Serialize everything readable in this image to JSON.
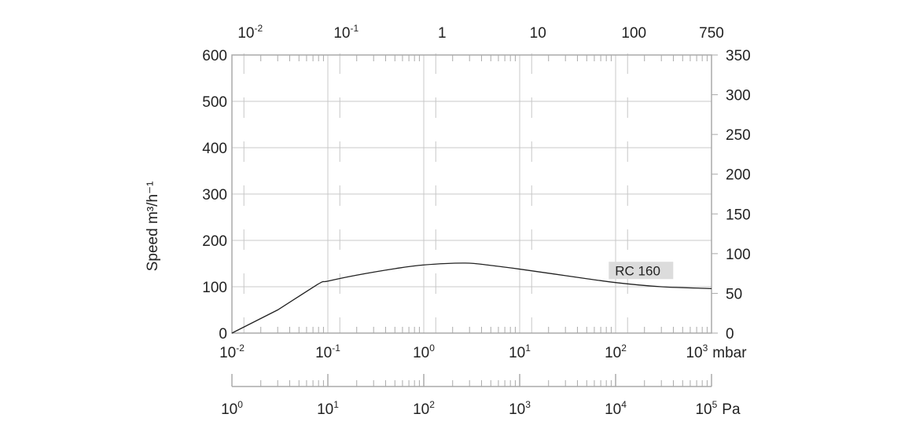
{
  "chart_data": {
    "type": "line",
    "xscale": "log",
    "ylabel": "Speed m³/h⁻¹",
    "x_bottom": {
      "unit": "mbar",
      "xlim": [
        0.01,
        1000
      ],
      "ticks": [
        {
          "b": "10",
          "e": "-2"
        },
        {
          "b": "10",
          "e": "-1"
        },
        {
          "b": "10",
          "e": "0"
        },
        {
          "b": "10",
          "e": "1"
        },
        {
          "b": "10",
          "e": "2"
        },
        {
          "b": "10",
          "e": "3"
        }
      ]
    },
    "x_pa": {
      "unit": "Pa",
      "ticks": [
        {
          "b": "10",
          "e": "0"
        },
        {
          "b": "10",
          "e": "1"
        },
        {
          "b": "10",
          "e": "2"
        },
        {
          "b": "10",
          "e": "3"
        },
        {
          "b": "10",
          "e": "4"
        },
        {
          "b": "10",
          "e": "5"
        }
      ]
    },
    "x_top": {
      "ticks": [
        {
          "b": "10",
          "e": "-2",
          "v": 0.01
        },
        {
          "b": "10",
          "e": "-1",
          "v": 0.1
        },
        {
          "b": "1",
          "e": "",
          "v": 1
        },
        {
          "b": "10",
          "e": "",
          "v": 10
        },
        {
          "b": "100",
          "e": "",
          "v": 100
        },
        {
          "b": "750",
          "e": "",
          "v": 750
        }
      ]
    },
    "y_left": {
      "ylim": [
        0,
        600
      ],
      "ticks": [
        0,
        100,
        200,
        300,
        400,
        500,
        600
      ]
    },
    "y_right": {
      "ylim": [
        0,
        350
      ],
      "ticks": [
        0,
        50,
        100,
        150,
        200,
        250,
        300,
        350
      ]
    },
    "grid": true,
    "series": [
      {
        "name": "RC 160",
        "x": [
          0.01,
          0.03,
          0.078,
          0.1,
          0.2,
          0.5,
          1,
          2.7,
          5,
          10,
          30,
          100,
          300,
          1000
        ],
        "y": [
          0,
          50,
          105,
          112,
          125,
          139,
          147,
          151,
          146,
          138,
          124,
          109,
          100,
          96
        ]
      }
    ],
    "colors": {
      "line": "#222222",
      "grid": "#c8c8c8",
      "axis": "#aaaaaa",
      "label_bg": "#dcdcdc"
    }
  }
}
